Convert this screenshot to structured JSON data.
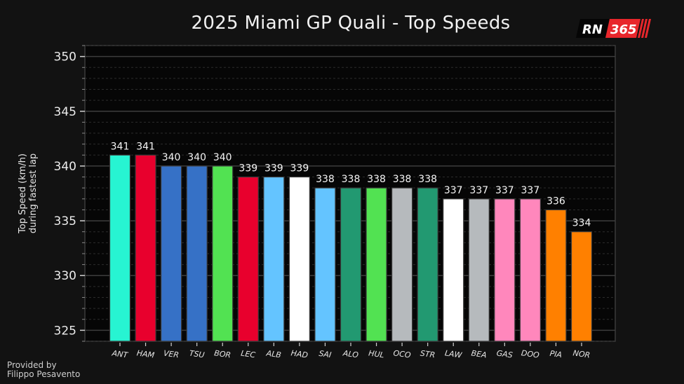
{
  "header": {
    "title": "2025 Miami GP Quali - Top Speeds",
    "logo": {
      "left_text": "RN",
      "right_text": "365",
      "accent_color": "#e8262b"
    }
  },
  "footer": {
    "credit_line1": "Provided by",
    "credit_line2": "Filippo Pesavento"
  },
  "chart_data": {
    "type": "bar",
    "title": "2025 Miami GP Quali - Top Speeds",
    "xlabel": "",
    "ylabel": [
      "Top Speed (km/h)",
      "during fastest lap"
    ],
    "ylim": [
      324,
      351
    ],
    "yticks_major": [
      325,
      330,
      335,
      340,
      345,
      350
    ],
    "yticks_minor_step": 1,
    "grid": true,
    "legend": "none",
    "categories": [
      "ANT",
      "HAM",
      "VER",
      "TSU",
      "BOR",
      "LEC",
      "ALB",
      "HAD",
      "SAI",
      "ALO",
      "HUL",
      "OCO",
      "STR",
      "LAW",
      "BEA",
      "GAS",
      "DOO",
      "PIA",
      "NOR"
    ],
    "values": [
      341,
      341,
      340,
      340,
      340,
      339,
      339,
      339,
      338,
      338,
      338,
      338,
      338,
      337,
      337,
      337,
      337,
      336,
      334
    ],
    "bar_colors": [
      "#27f4d2",
      "#e8002d",
      "#3671c6",
      "#3671c6",
      "#52e252",
      "#e8002d",
      "#64c4ff",
      "#ffffff",
      "#64c4ff",
      "#229971",
      "#52e252",
      "#b6babd",
      "#229971",
      "#ffffff",
      "#b6babd",
      "#ff87bc",
      "#ff87bc",
      "#ff8000",
      "#ff8000"
    ],
    "data_labels": [
      "341",
      "341",
      "340",
      "340",
      "340",
      "339",
      "339",
      "339",
      "338",
      "338",
      "338",
      "338",
      "338",
      "337",
      "337",
      "337",
      "337",
      "336",
      "334"
    ]
  }
}
